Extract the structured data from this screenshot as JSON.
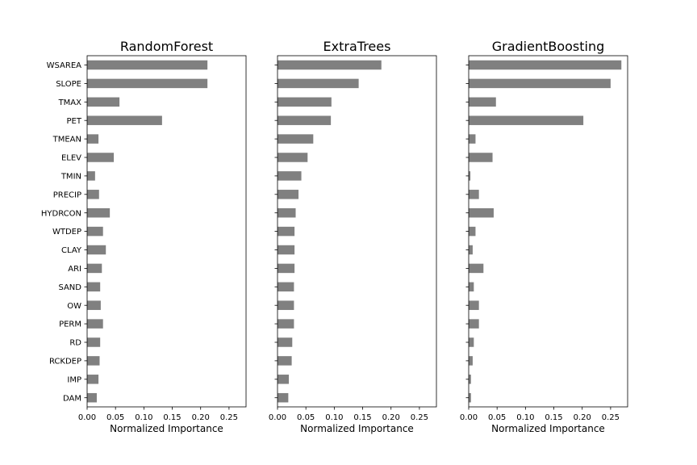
{
  "figure": {
    "bar_color": "#808080",
    "background": "#ffffff"
  },
  "chart_data": [
    {
      "type": "bar",
      "orientation": "horizontal",
      "title": "RandomForest",
      "xlabel": "Normalized Importance",
      "ylabel": "",
      "xlim": [
        0,
        0.28
      ],
      "xticks": [
        "0.00",
        "0.05",
        "0.10",
        "0.15",
        "0.20",
        "0.25"
      ],
      "categories": [
        "WSAREA",
        "SLOPE",
        "TMAX",
        "PET",
        "TMEAN",
        "ELEV",
        "TMIN",
        "PRECIP",
        "HYDRCON",
        "WTDEP",
        "CLAY",
        "ARI",
        "SAND",
        "OW",
        "PERM",
        "RD",
        "RCKDEP",
        "IMP",
        "DAM"
      ],
      "values": [
        0.212,
        0.212,
        0.057,
        0.132,
        0.02,
        0.047,
        0.014,
        0.021,
        0.04,
        0.028,
        0.033,
        0.026,
        0.023,
        0.024,
        0.028,
        0.023,
        0.022,
        0.02,
        0.017
      ],
      "grid": false,
      "legend": "none"
    },
    {
      "type": "bar",
      "orientation": "horizontal",
      "title": "ExtraTrees",
      "xlabel": "Normalized Importance",
      "ylabel": "",
      "xlim": [
        0,
        0.28
      ],
      "xticks": [
        "0.00",
        "0.05",
        "0.10",
        "0.15",
        "0.20",
        "0.25"
      ],
      "categories": [
        "WSAREA",
        "SLOPE",
        "TMAX",
        "PET",
        "TMEAN",
        "ELEV",
        "TMIN",
        "PRECIP",
        "HYDRCON",
        "WTDEP",
        "CLAY",
        "ARI",
        "SAND",
        "OW",
        "PERM",
        "RD",
        "RCKDEP",
        "IMP",
        "DAM"
      ],
      "values": [
        0.183,
        0.143,
        0.095,
        0.094,
        0.063,
        0.053,
        0.042,
        0.037,
        0.032,
        0.03,
        0.03,
        0.03,
        0.029,
        0.029,
        0.029,
        0.026,
        0.025,
        0.02,
        0.019
      ],
      "grid": false,
      "legend": "none"
    },
    {
      "type": "bar",
      "orientation": "horizontal",
      "title": "GradientBoosting",
      "xlabel": "Normalized Importance",
      "ylabel": "",
      "xlim": [
        0,
        0.28
      ],
      "xticks": [
        "0.00",
        "0.05",
        "0.10",
        "0.15",
        "0.20",
        "0.25"
      ],
      "categories": [
        "WSAREA",
        "SLOPE",
        "TMAX",
        "PET",
        "TMEAN",
        "ELEV",
        "TMIN",
        "PRECIP",
        "HYDRCON",
        "WTDEP",
        "CLAY",
        "ARI",
        "SAND",
        "OW",
        "PERM",
        "RD",
        "RCKDEP",
        "IMP",
        "DAM"
      ],
      "values": [
        0.269,
        0.25,
        0.048,
        0.202,
        0.012,
        0.042,
        0.003,
        0.018,
        0.044,
        0.012,
        0.007,
        0.026,
        0.009,
        0.018,
        0.018,
        0.009,
        0.007,
        0.004,
        0.004
      ],
      "grid": false,
      "legend": "none"
    }
  ]
}
